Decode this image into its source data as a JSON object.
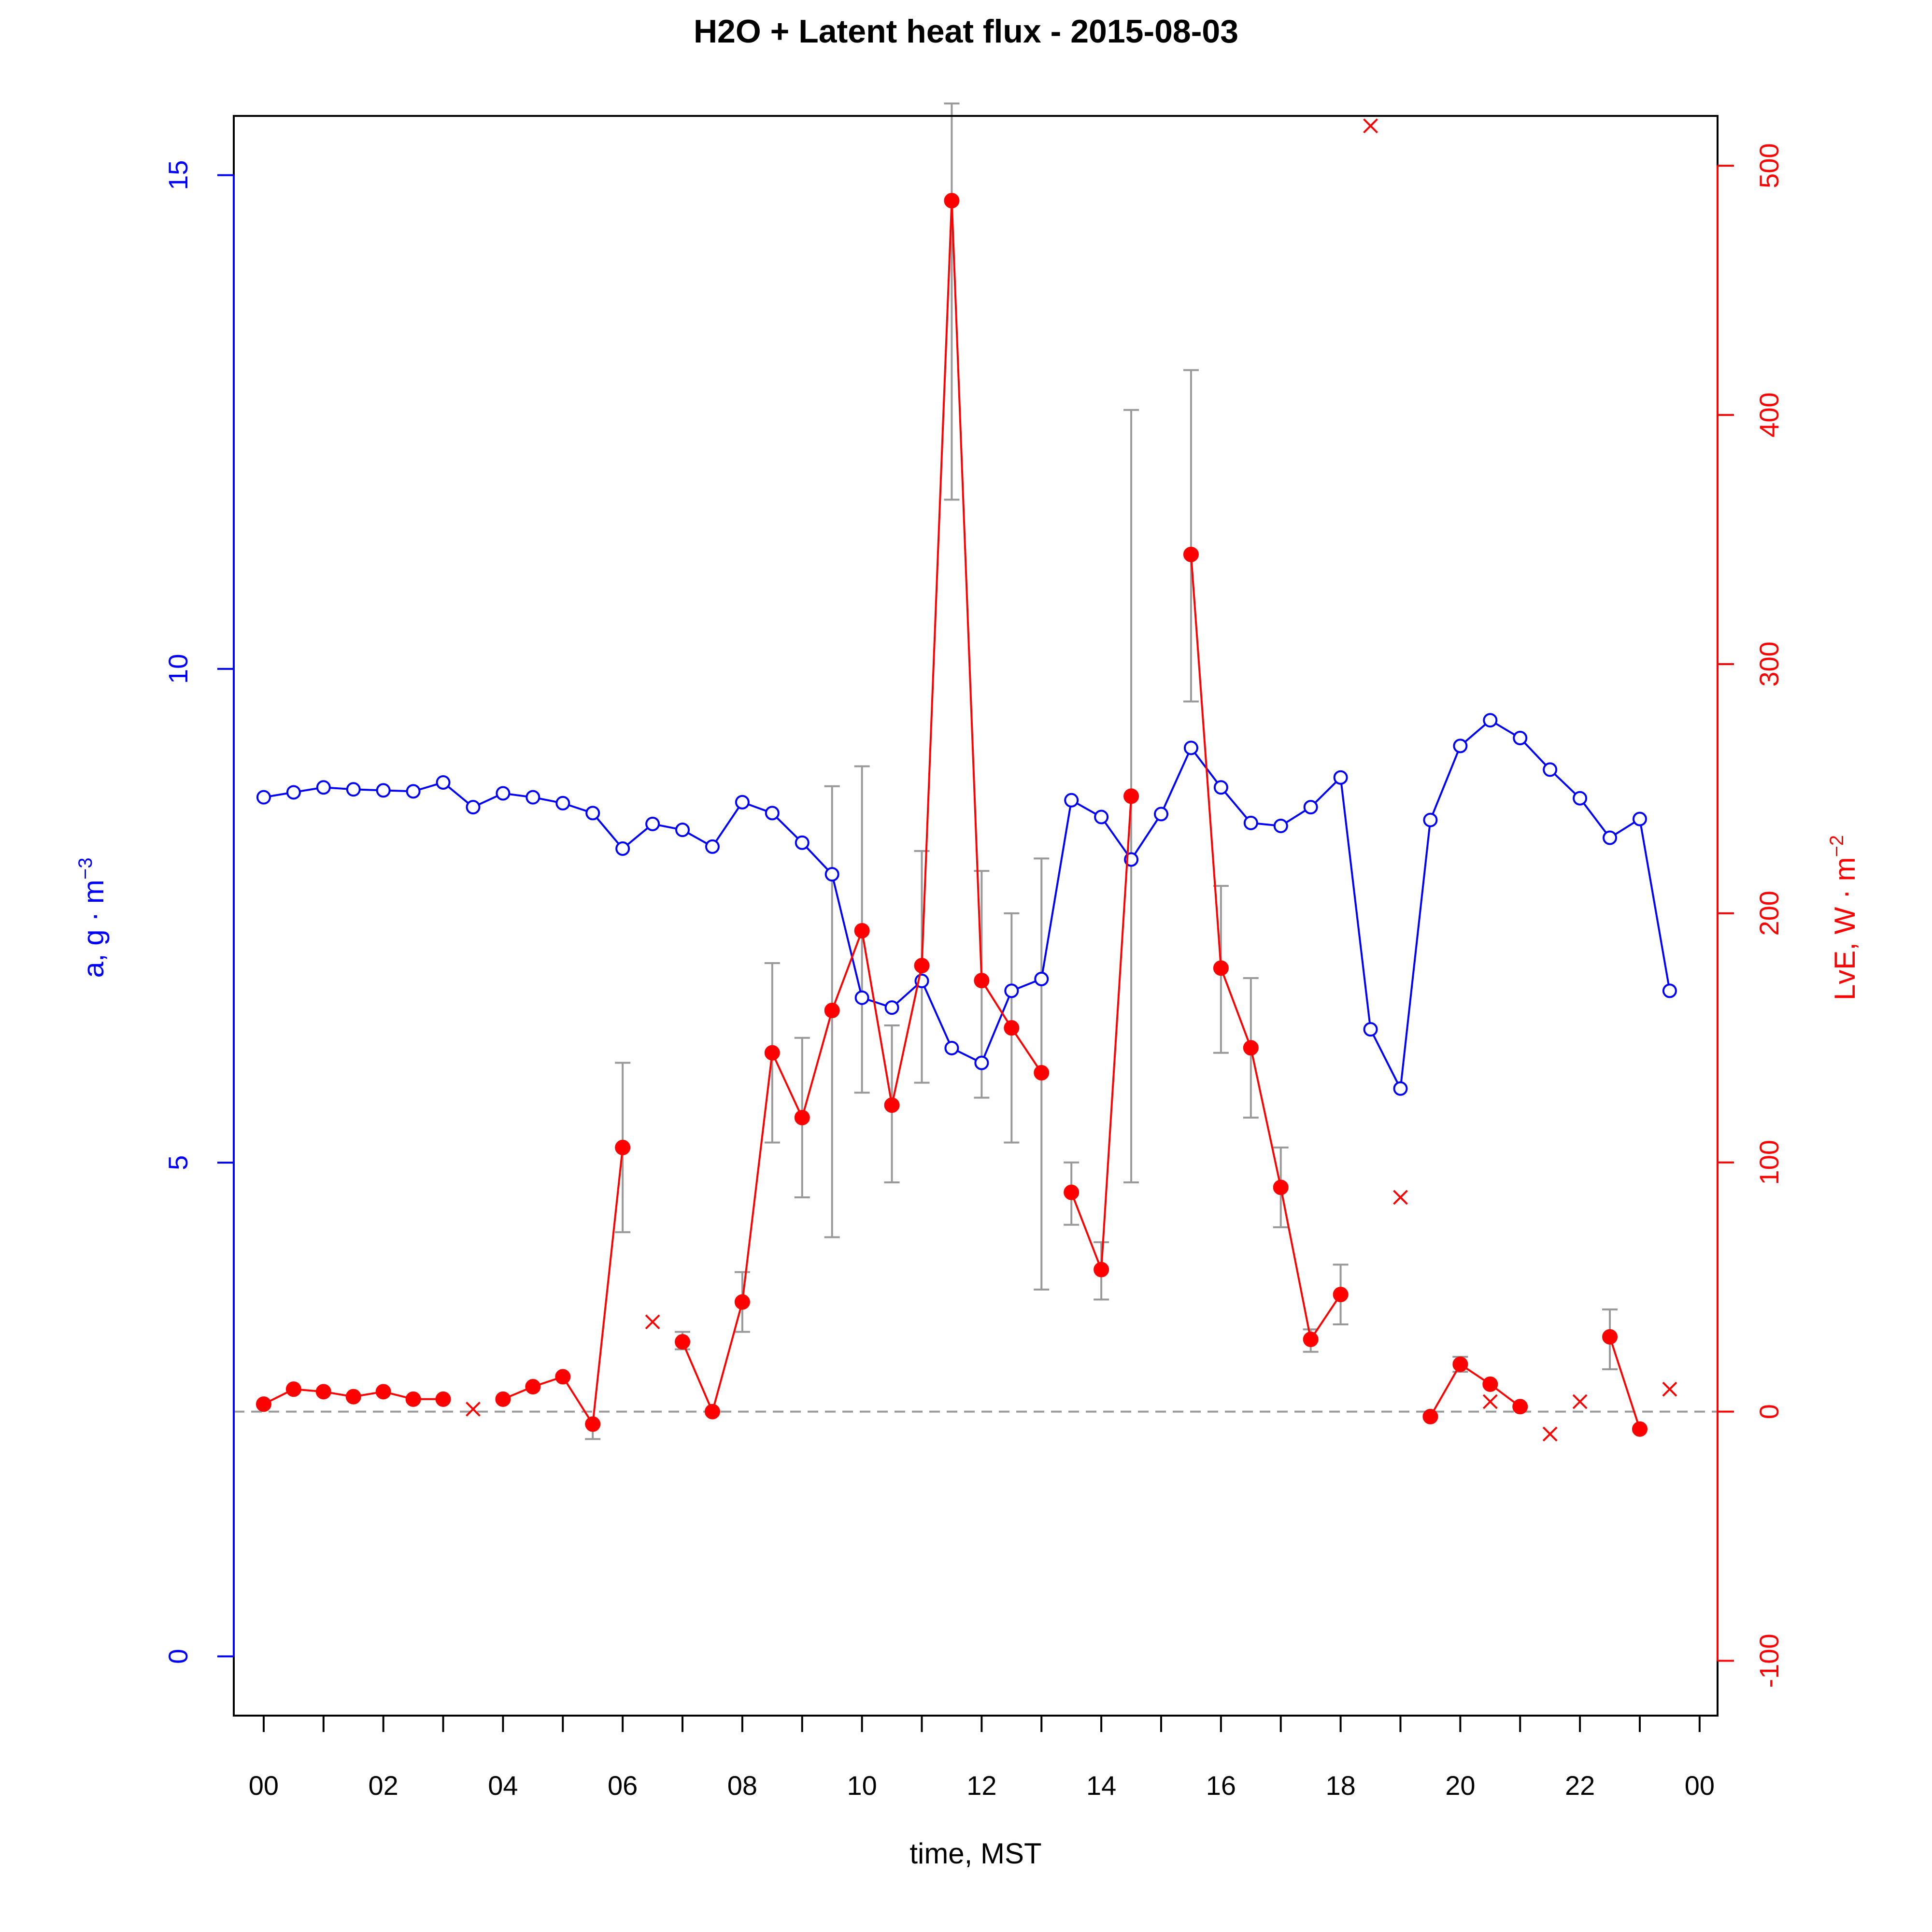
{
  "chart_data": {
    "type": "line",
    "title": "H2O + Latent heat flux -  2015-08-03",
    "xlabel": "time, MST",
    "ylabel_left": "a, g · m",
    "ylabel_left_sup": "−3",
    "ylabel_right": "LvE, W · m",
    "ylabel_right_sup": "−2",
    "xlim": [
      -0.5,
      24.3
    ],
    "ylim_left": [
      -0.6,
      15.6
    ],
    "ylim_right": [
      -122,
      520
    ],
    "x_ticks": [
      0,
      1,
      2,
      3,
      4,
      5,
      6,
      7,
      8,
      9,
      10,
      11,
      12,
      13,
      14,
      15,
      16,
      17,
      18,
      19,
      20,
      21,
      22,
      23,
      24
    ],
    "x_tick_labels": [
      {
        "x": 0,
        "label": "00"
      },
      {
        "x": 2,
        "label": "02"
      },
      {
        "x": 4,
        "label": "04"
      },
      {
        "x": 6,
        "label": "06"
      },
      {
        "x": 8,
        "label": "08"
      },
      {
        "x": 10,
        "label": "10"
      },
      {
        "x": 12,
        "label": "12"
      },
      {
        "x": 14,
        "label": "14"
      },
      {
        "x": 16,
        "label": "16"
      },
      {
        "x": 18,
        "label": "18"
      },
      {
        "x": 20,
        "label": "20"
      },
      {
        "x": 22,
        "label": "22"
      },
      {
        "x": 24,
        "label": "00"
      }
    ],
    "y_ticks_left": [
      {
        "v": 0,
        "label": "0"
      },
      {
        "v": 5,
        "label": "5"
      },
      {
        "v": 10,
        "label": "10"
      },
      {
        "v": 15,
        "label": "15"
      }
    ],
    "y_ticks_right": [
      {
        "v": -100,
        "label": "-100"
      },
      {
        "v": 0,
        "label": "0"
      },
      {
        "v": 100,
        "label": "100"
      },
      {
        "v": 200,
        "label": "200"
      },
      {
        "v": 300,
        "label": "300"
      },
      {
        "v": 400,
        "label": "400"
      },
      {
        "v": 500,
        "label": "500"
      }
    ],
    "zero_line_right": 0,
    "colors": {
      "h2o": "#0000ff",
      "lve": "#ff0000",
      "errorbar": "#999999",
      "zero_line": "#999999"
    },
    "series_h2o": {
      "axis": "left",
      "marker": "open-circle",
      "x": [
        0,
        0.5,
        1,
        1.5,
        2,
        2.5,
        3,
        3.5,
        4,
        4.5,
        5,
        5.5,
        6,
        6.5,
        7,
        7.5,
        8,
        8.5,
        9,
        9.5,
        10,
        10.5,
        11,
        11.5,
        12,
        12.5,
        13,
        13.5,
        14,
        14.5,
        15,
        15.5,
        16,
        16.5,
        17,
        17.5,
        18,
        18.5,
        19,
        19.5,
        20,
        20.5,
        21,
        21.5,
        22,
        22.5,
        23,
        23.5
      ],
      "y": [
        8.7,
        8.75,
        8.8,
        8.78,
        8.77,
        8.76,
        8.85,
        8.6,
        8.74,
        8.7,
        8.64,
        8.54,
        8.18,
        8.43,
        8.37,
        8.2,
        8.65,
        8.54,
        8.24,
        7.92,
        6.67,
        6.57,
        6.84,
        6.16,
        6.01,
        6.74,
        6.86,
        8.67,
        8.5,
        8.07,
        8.53,
        9.2,
        8.8,
        8.44,
        8.41,
        8.6,
        8.9,
        6.35,
        5.75,
        8.47,
        9.22,
        9.48,
        9.3,
        8.98,
        8.69,
        8.29,
        8.48,
        6.74
      ]
    },
    "series_lve": {
      "axis": "right",
      "marker": "filled-circle",
      "segments": [
        {
          "x": [
            0,
            0.5,
            1,
            1.5,
            2,
            2.5,
            3
          ],
          "y": [
            3,
            9,
            8,
            6,
            8,
            5,
            5
          ]
        },
        {
          "x": [
            4,
            4.5,
            5,
            5.5,
            6
          ],
          "y": [
            5,
            10,
            14,
            -5,
            106
          ]
        },
        {
          "x": [
            7,
            7.5,
            8,
            8.5,
            9,
            9.5,
            10,
            10.5,
            11,
            11.5,
            12,
            12.5,
            13
          ],
          "y": [
            28,
            0,
            44,
            144,
            118,
            161,
            193,
            123,
            179,
            486,
            173,
            154,
            136
          ]
        },
        {
          "x": [
            13.5,
            14,
            14.5
          ],
          "y": [
            88,
            57,
            247
          ]
        },
        {
          "x": [
            15.5,
            16,
            16.5,
            17,
            17.5,
            18
          ],
          "y": [
            344,
            178,
            146,
            90,
            29,
            47
          ]
        },
        {
          "x": [
            19.5,
            20,
            20.5,
            21
          ],
          "y": [
            -2,
            19,
            11,
            2
          ]
        },
        {
          "x": [
            22.5,
            23
          ],
          "y": [
            30,
            -7
          ]
        }
      ]
    },
    "lve_missing_x_markers": {
      "marker": "x",
      "x": [
        3.5,
        6.5,
        18.5,
        19,
        20.5,
        21.5,
        22,
        23.5
      ],
      "y": [
        1,
        36,
        516,
        86,
        4,
        -9,
        4,
        9
      ]
    },
    "lve_error_bars": [
      {
        "x": 5.5,
        "lo": -11,
        "hi": -5
      },
      {
        "x": 6,
        "lo": 72,
        "hi": 140
      },
      {
        "x": 7,
        "lo": 25,
        "hi": 32
      },
      {
        "x": 8,
        "lo": 32,
        "hi": 56
      },
      {
        "x": 8.5,
        "lo": 108,
        "hi": 180
      },
      {
        "x": 9,
        "lo": 86,
        "hi": 150
      },
      {
        "x": 9.5,
        "lo": 70,
        "hi": 251
      },
      {
        "x": 10,
        "lo": 128,
        "hi": 259
      },
      {
        "x": 10.5,
        "lo": 92,
        "hi": 155
      },
      {
        "x": 11,
        "lo": 132,
        "hi": 225
      },
      {
        "x": 11.5,
        "lo": 366,
        "hi": 525
      },
      {
        "x": 12,
        "lo": 126,
        "hi": 217
      },
      {
        "x": 12.5,
        "lo": 108,
        "hi": 200
      },
      {
        "x": 13,
        "lo": 49,
        "hi": 222
      },
      {
        "x": 13.5,
        "lo": 75,
        "hi": 100
      },
      {
        "x": 14,
        "lo": 45,
        "hi": 68
      },
      {
        "x": 14.5,
        "lo": 92,
        "hi": 402
      },
      {
        "x": 15.5,
        "lo": 285,
        "hi": 418
      },
      {
        "x": 16,
        "lo": 144,
        "hi": 211
      },
      {
        "x": 16.5,
        "lo": 118,
        "hi": 174
      },
      {
        "x": 17,
        "lo": 74,
        "hi": 106
      },
      {
        "x": 17.5,
        "lo": 24,
        "hi": 33
      },
      {
        "x": 18,
        "lo": 35,
        "hi": 59
      },
      {
        "x": 20,
        "lo": 16,
        "hi": 22
      },
      {
        "x": 22.5,
        "lo": 17,
        "hi": 41
      }
    ]
  }
}
